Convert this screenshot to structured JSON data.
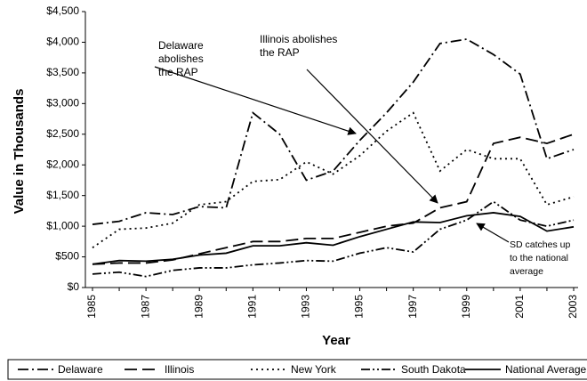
{
  "chart_data": {
    "type": "line",
    "ylabel": "Value in Thousands",
    "xlabel": "Year",
    "categories": [
      "1985",
      null,
      "1987",
      null,
      "1989",
      null,
      "1991",
      null,
      "1993",
      null,
      "1995",
      null,
      "1997",
      null,
      "1999",
      null,
      "2001",
      null,
      "2003"
    ],
    "series": [
      {
        "name": "Delaware",
        "color": "#000000",
        "dash": "12,4,2,4",
        "values": [
          1030,
          1080,
          1220,
          1190,
          1320,
          1300,
          2850,
          2500,
          1750,
          1900,
          2400,
          2850,
          3350,
          3980,
          4050,
          3800,
          3480,
          2100,
          2250
        ]
      },
      {
        "name": "Illinois",
        "color": "#000000",
        "dash": "14,6",
        "values": [
          380,
          400,
          400,
          450,
          550,
          650,
          750,
          750,
          800,
          800,
          900,
          1000,
          1050,
          1300,
          1400,
          2350,
          2450,
          2350,
          2500
        ]
      },
      {
        "name": "New York",
        "color": "#000000",
        "dash": "2,4",
        "values": [
          650,
          950,
          970,
          1050,
          1350,
          1400,
          1730,
          1760,
          2050,
          1850,
          2150,
          2550,
          2850,
          1900,
          2250,
          2100,
          2100,
          1350,
          1480
        ]
      },
      {
        "name": "South Dakota",
        "color": "#000000",
        "dash": "10,3,2,3,2,3",
        "values": [
          220,
          250,
          180,
          280,
          320,
          320,
          370,
          400,
          440,
          430,
          560,
          650,
          580,
          950,
          1100,
          1400,
          1100,
          1000,
          1100
        ]
      },
      {
        "name": "National Average",
        "color": "#000000",
        "dash": "none",
        "values": [
          380,
          440,
          430,
          460,
          530,
          560,
          680,
          680,
          730,
          690,
          830,
          950,
          1070,
          1060,
          1170,
          1220,
          1160,
          920,
          990
        ]
      }
    ],
    "ylim": [
      0,
      4500
    ],
    "yticks": [
      {
        "value": 0,
        "label": "$0"
      },
      {
        "value": 500,
        "label": "$500"
      },
      {
        "value": 1000,
        "label": "$1,000"
      },
      {
        "value": 1500,
        "label": "$1,500"
      },
      {
        "value": 2000,
        "label": "$2,000"
      },
      {
        "value": 2500,
        "label": "$2,500"
      },
      {
        "value": 3000,
        "label": "$3,000"
      },
      {
        "value": 3500,
        "label": "$3,500"
      },
      {
        "value": 4000,
        "label": "$4,000"
      },
      {
        "value": 4500,
        "label": "$4,500"
      }
    ],
    "annotations": [
      {
        "lines": [
          "Delaware",
          "abolishes",
          "the RAP"
        ]
      },
      {
        "lines": [
          "Illinois abolishes",
          "the RAP"
        ]
      },
      {
        "lines": [
          "SD catches up",
          "to the national",
          "average"
        ]
      }
    ]
  }
}
